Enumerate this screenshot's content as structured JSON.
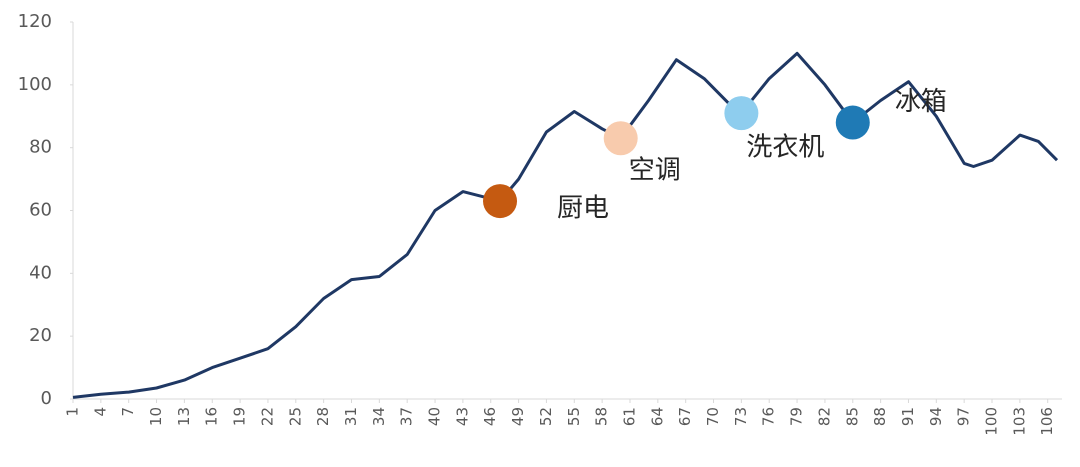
{
  "chart_data": {
    "type": "line",
    "x": [
      1,
      4,
      7,
      10,
      13,
      16,
      19,
      22,
      25,
      28,
      31,
      34,
      37,
      40,
      43,
      47,
      49,
      52,
      55,
      58,
      60,
      63,
      66,
      69,
      72,
      73,
      76,
      79,
      82,
      85,
      88,
      91,
      94,
      97,
      98,
      100,
      103,
      105,
      107
    ],
    "series": [
      {
        "color": "#1f3864",
        "values": [
          0.5,
          1.5,
          2.2,
          3.5,
          6,
          10,
          13,
          16,
          23,
          32,
          38,
          39,
          46,
          60,
          66,
          63,
          70,
          85,
          91.5,
          86,
          83,
          95,
          108,
          102,
          93,
          91,
          102,
          110,
          100,
          88,
          95,
          101,
          90,
          75,
          74,
          76,
          84,
          82,
          76
        ]
      }
    ],
    "highlights": [
      {
        "label": "厨电",
        "x": 47,
        "y": 63,
        "color": "#c55a11"
      },
      {
        "label": "空调",
        "x": 60,
        "y": 83,
        "color": "#f8cbad"
      },
      {
        "label": "洗衣机",
        "x": 73,
        "y": 91,
        "color": "#8ecdee"
      },
      {
        "label": "冰箱",
        "x": 85,
        "y": 88,
        "color": "#1f7ab5"
      }
    ],
    "xlim": [
      1,
      107
    ],
    "xticks": [
      1,
      4,
      7,
      10,
      13,
      16,
      19,
      22,
      25,
      28,
      31,
      34,
      37,
      40,
      43,
      46,
      49,
      52,
      55,
      58,
      61,
      64,
      67,
      70,
      73,
      76,
      79,
      82,
      85,
      88,
      91,
      94,
      97,
      100,
      103,
      106
    ],
    "ylim": [
      0,
      120
    ],
    "yticks": [
      0,
      20,
      40,
      60,
      80,
      100,
      120
    ]
  }
}
